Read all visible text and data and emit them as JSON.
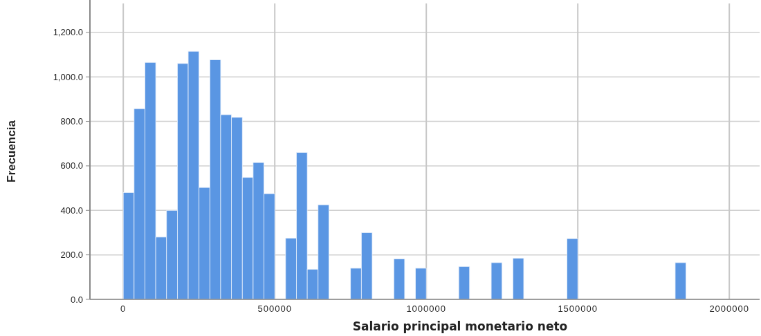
{
  "chart_data": {
    "type": "histogram",
    "xlabel": "Salario principal monetario neto",
    "ylabel": "Frecuencia",
    "color": "#5a96e3",
    "bins": [
      0,
      35714,
      71429,
      107143,
      142857,
      178571,
      214286,
      250000,
      285714,
      321429,
      357143,
      392857,
      428571,
      464286,
      500000,
      535714,
      571429,
      607143,
      642857,
      678571,
      714286,
      750000,
      785714,
      821429,
      857143,
      892857,
      928571,
      964286,
      1000000,
      1035714,
      1071429,
      1107143,
      1142857,
      1178571,
      1214286,
      1250000,
      1285714,
      1321429,
      1357143,
      1392857,
      1428571,
      1464286,
      1500000,
      1535714,
      1571429,
      1607143,
      1642857,
      1678571,
      1714286,
      1750000,
      1785714,
      1821429,
      1857143,
      1892857,
      1928571,
      1964286,
      2000000
    ],
    "values": [
      480,
      857,
      1065,
      280,
      400,
      1060,
      1115,
      503,
      1077,
      830,
      818,
      548,
      615,
      475,
      0,
      275,
      660,
      135,
      425,
      0,
      0,
      140,
      300,
      0,
      0,
      182,
      0,
      140,
      0,
      0,
      0,
      148,
      0,
      0,
      165,
      0,
      185,
      0,
      0,
      0,
      0,
      273,
      0,
      0,
      0,
      0,
      0,
      0,
      0,
      0,
      0,
      165,
      0,
      0,
      0,
      0
    ],
    "xlim": [
      -110000,
      2100000
    ],
    "xticks": [
      0,
      500000,
      1000000,
      1500000,
      2000000
    ],
    "ylim": [
      0,
      1330
    ],
    "yticks": [
      {
        "value": 0,
        "label": "0.0"
      },
      {
        "value": 200,
        "label": "200.0"
      },
      {
        "value": 400,
        "label": "400.0"
      },
      {
        "value": 600,
        "label": "600.0"
      },
      {
        "value": 800,
        "label": "800.0"
      },
      {
        "value": 1000,
        "label": "1,000.0"
      },
      {
        "value": 1200,
        "label": "1,200.0"
      }
    ],
    "grid": true
  }
}
